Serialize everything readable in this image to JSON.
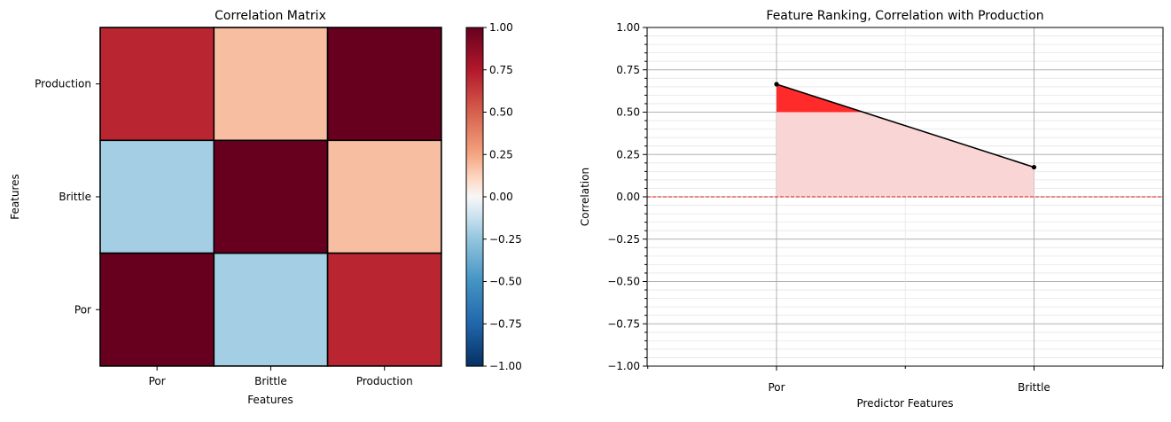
{
  "chart_data": [
    {
      "type": "heatmap",
      "title": "Correlation Matrix",
      "xlabel": "Features",
      "ylabel": "Features",
      "x_categories": [
        "Por",
        "Brittle",
        "Production"
      ],
      "y_categories": [
        "Production",
        "Brittle",
        "Por"
      ],
      "values": [
        [
          0.7,
          0.18,
          1.0
        ],
        [
          -0.21,
          1.0,
          0.18
        ],
        [
          1.0,
          -0.21,
          0.7
        ]
      ],
      "colorbar": {
        "range": [
          -1.0,
          1.0
        ],
        "ticks": [
          1.0,
          0.75,
          0.5,
          0.25,
          0.0,
          -0.25,
          -0.5,
          -0.75,
          -1.0
        ],
        "tick_labels": [
          "1.00",
          "0.75",
          "0.50",
          "0.25",
          "0.00",
          "−0.25",
          "−0.50",
          "−0.75",
          "−1.00"
        ],
        "colormap": "RdBu_r"
      }
    },
    {
      "type": "line",
      "title": "Feature Ranking, Correlation with Production",
      "xlabel": "Predictor Features",
      "ylabel": "Correlation",
      "categories": [
        "Por",
        "Brittle"
      ],
      "values": [
        0.665,
        0.175
      ],
      "ylim": [
        -1.0,
        1.0
      ],
      "yticks": [
        1.0,
        0.75,
        0.5,
        0.25,
        0.0,
        -0.25,
        -0.5,
        -0.75,
        -1.0
      ],
      "ytick_labels": [
        "1.00",
        "0.75",
        "0.50",
        "0.25",
        "0.00",
        "−0.25",
        "−0.50",
        "−0.75",
        "−1.00"
      ],
      "reference_line": 0.0,
      "highlight_threshold": 0.5,
      "colors": {
        "line": "#000000",
        "fill_light": "#f9d5d5",
        "fill_strong": "#ff2a2a",
        "ref": "#dd1111"
      },
      "grid": true
    }
  ]
}
